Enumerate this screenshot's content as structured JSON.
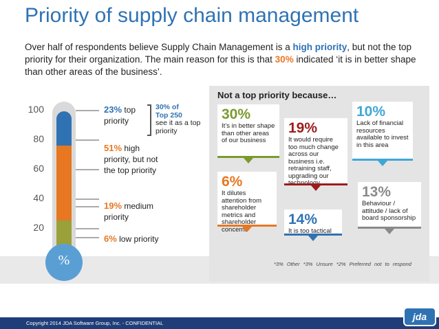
{
  "title": "Priority of supply chain management",
  "subtitle": {
    "p1": "Over half of respondents believe Supply Chain Management is a ",
    "hl1": "high priority",
    "p2": ", but not the top priority for their organization. The main reason for this is that ",
    "hl2": "30%",
    "p3": " indicated ‘it is in better shape than other areas of the business’."
  },
  "colors": {
    "blue": "#2f72b3",
    "orange": "#e87722",
    "olive": "#9aa13a",
    "dark_red": "#9e1b1b",
    "green": "#7b9a2e",
    "grey": "#8a8a8a",
    "light_blue": "#3fa7d6"
  },
  "chart_data": [
    {
      "type": "bar",
      "title": "",
      "ylim": [
        0,
        100
      ],
      "yticks": [
        "100",
        "80",
        "60",
        "40",
        "20"
      ],
      "bulb_label": "%",
      "segments": [
        {
          "pct": "6%",
          "label": "low priority",
          "value": 6,
          "color": "#e8e8e8"
        },
        {
          "pct": "19%",
          "label": "medium priority",
          "value": 19,
          "color": "#9aa13a"
        },
        {
          "pct": "51%",
          "label": "high priority, but not the top priority",
          "value": 51,
          "color": "#e87722"
        },
        {
          "pct": "23%",
          "label": "top priority",
          "value": 23,
          "color": "#2f72b3"
        }
      ],
      "callout": {
        "l1": "30% of",
        "l2": "Top 250",
        "l3": "see it as a top priority"
      }
    },
    {
      "type": "table",
      "title": "Not a top priority because…",
      "reasons": [
        {
          "pct": "30%",
          "text": "It’s in better shape than other areas of our business",
          "value": 30,
          "color": "#7b9a2e"
        },
        {
          "pct": "19%",
          "text": "It would require too much change across our business i.e. retraining staff, upgrading our technology",
          "value": 19,
          "color": "#9e1b1b"
        },
        {
          "pct": "10%",
          "text": "Lack of financial resources available to invest in this area",
          "value": 10,
          "color": "#3fa7d6"
        },
        {
          "pct": "6%",
          "text": "It dilutes attention from shareholder metrics and shareholder concerns",
          "value": 6,
          "color": "#e87722"
        },
        {
          "pct": "14%",
          "text": "It is too tactical",
          "value": 14,
          "color": "#2f72b3"
        },
        {
          "pct": "13%",
          "text": "Behaviour / attitude / lack of board sponsorship",
          "value": 13,
          "color": "#8a8a8a"
        }
      ],
      "footnotes": "*3% Other  *3% Unsure   *2% Preferred not to respond"
    }
  ],
  "footer": {
    "copyright": "Copyright 2014 JDA Software Group, Inc. - CONFIDENTIAL",
    "logo": "jda"
  }
}
